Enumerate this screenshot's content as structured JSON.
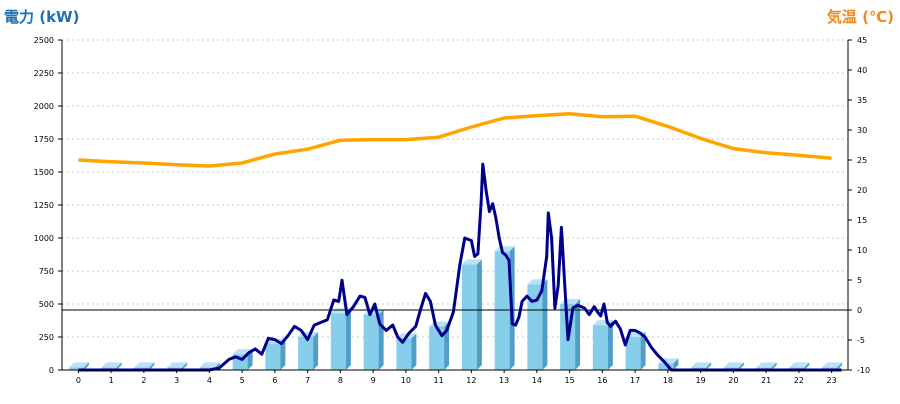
{
  "chart_data": {
    "type": "bar+line",
    "left_axis_title": "電力 (kW)",
    "right_axis_title": "気温 (℃)",
    "x_ticks": [
      "0",
      "1",
      "2",
      "3",
      "4",
      "5",
      "6",
      "7",
      "8",
      "9",
      "10",
      "11",
      "12",
      "13",
      "14",
      "15",
      "16",
      "17",
      "18",
      "19",
      "20",
      "21",
      "22",
      "23"
    ],
    "left_ticks": [
      "0",
      "250",
      "500",
      "750",
      "1000",
      "1250",
      "1500",
      "1750",
      "2000",
      "2250",
      "2500"
    ],
    "right_ticks": [
      "-10",
      "-5",
      "0",
      "5",
      "10",
      "15",
      "20",
      "25",
      "30",
      "35",
      "40",
      "45"
    ],
    "ylim_left": [
      0,
      2500
    ],
    "ylim_right": [
      -10,
      45
    ],
    "grid": true,
    "colors": {
      "bars": "#87ceeb",
      "bar_side": "#4f9ec8",
      "bar_top": "#b9e3f5",
      "power_line": "#00008b",
      "temperature_line": "#ffa500",
      "zero_line": "#000000",
      "grid": "#c8c8c8",
      "left_title": "#1f6fb3",
      "right_title": "#f08a1e"
    },
    "hourly_power": [
      20,
      20,
      20,
      20,
      20,
      120,
      200,
      250,
      430,
      420,
      240,
      330,
      800,
      900,
      650,
      500,
      340,
      250,
      50,
      20,
      20,
      20,
      20,
      20
    ],
    "temperature": [
      25.0,
      24.7,
      24.5,
      24.2,
      24.0,
      24.5,
      26.0,
      26.8,
      28.3,
      28.4,
      28.4,
      28.8,
      30.5,
      32.0,
      32.4,
      32.7,
      32.2,
      32.3,
      30.6,
      28.6,
      26.9,
      26.2,
      25.8,
      25.3
    ],
    "power_5min": [
      [
        0,
        0
      ],
      [
        1,
        0
      ],
      [
        2,
        0
      ],
      [
        3,
        0
      ],
      [
        4,
        0
      ],
      [
        4.3,
        15
      ],
      [
        4.6,
        80
      ],
      [
        4.8,
        100
      ],
      [
        5.0,
        80
      ],
      [
        5.2,
        130
      ],
      [
        5.4,
        160
      ],
      [
        5.6,
        120
      ],
      [
        5.8,
        240
      ],
      [
        6.0,
        230
      ],
      [
        6.2,
        200
      ],
      [
        6.4,
        260
      ],
      [
        6.6,
        330
      ],
      [
        6.8,
        300
      ],
      [
        7.0,
        230
      ],
      [
        7.2,
        340
      ],
      [
        7.4,
        360
      ],
      [
        7.6,
        380
      ],
      [
        7.8,
        530
      ],
      [
        7.95,
        520
      ],
      [
        8.05,
        680
      ],
      [
        8.2,
        420
      ],
      [
        8.4,
        480
      ],
      [
        8.6,
        560
      ],
      [
        8.75,
        550
      ],
      [
        8.9,
        420
      ],
      [
        9.05,
        500
      ],
      [
        9.2,
        350
      ],
      [
        9.4,
        300
      ],
      [
        9.6,
        340
      ],
      [
        9.75,
        250
      ],
      [
        9.9,
        210
      ],
      [
        10.1,
        280
      ],
      [
        10.3,
        330
      ],
      [
        10.45,
        460
      ],
      [
        10.6,
        580
      ],
      [
        10.75,
        520
      ],
      [
        10.9,
        340
      ],
      [
        11.1,
        260
      ],
      [
        11.25,
        300
      ],
      [
        11.45,
        440
      ],
      [
        11.65,
        800
      ],
      [
        11.8,
        1000
      ],
      [
        12.0,
        980
      ],
      [
        12.1,
        860
      ],
      [
        12.2,
        880
      ],
      [
        12.3,
        1280
      ],
      [
        12.35,
        1560
      ],
      [
        12.45,
        1360
      ],
      [
        12.55,
        1200
      ],
      [
        12.65,
        1260
      ],
      [
        12.75,
        1150
      ],
      [
        12.85,
        1000
      ],
      [
        12.95,
        890
      ],
      [
        13.05,
        870
      ],
      [
        13.15,
        830
      ],
      [
        13.25,
        350
      ],
      [
        13.35,
        340
      ],
      [
        13.45,
        400
      ],
      [
        13.55,
        520
      ],
      [
        13.7,
        560
      ],
      [
        13.85,
        520
      ],
      [
        14.0,
        530
      ],
      [
        14.15,
        600
      ],
      [
        14.3,
        860
      ],
      [
        14.35,
        1190
      ],
      [
        14.45,
        1000
      ],
      [
        14.55,
        470
      ],
      [
        14.65,
        640
      ],
      [
        14.75,
        1080
      ],
      [
        14.85,
        650
      ],
      [
        14.95,
        230
      ],
      [
        15.1,
        470
      ],
      [
        15.25,
        490
      ],
      [
        15.45,
        470
      ],
      [
        15.6,
        420
      ],
      [
        15.75,
        480
      ],
      [
        15.85,
        440
      ],
      [
        15.95,
        410
      ],
      [
        16.05,
        500
      ],
      [
        16.15,
        360
      ],
      [
        16.25,
        330
      ],
      [
        16.4,
        370
      ],
      [
        16.55,
        310
      ],
      [
        16.7,
        190
      ],
      [
        16.85,
        300
      ],
      [
        17.0,
        300
      ],
      [
        17.15,
        280
      ],
      [
        17.3,
        250
      ],
      [
        17.5,
        170
      ],
      [
        17.7,
        110
      ],
      [
        17.9,
        60
      ],
      [
        18.0,
        30
      ],
      [
        18.1,
        0
      ],
      [
        19,
        0
      ],
      [
        20,
        0
      ],
      [
        21,
        0
      ],
      [
        22,
        0
      ],
      [
        23,
        0
      ],
      [
        23.3,
        0
      ]
    ]
  }
}
